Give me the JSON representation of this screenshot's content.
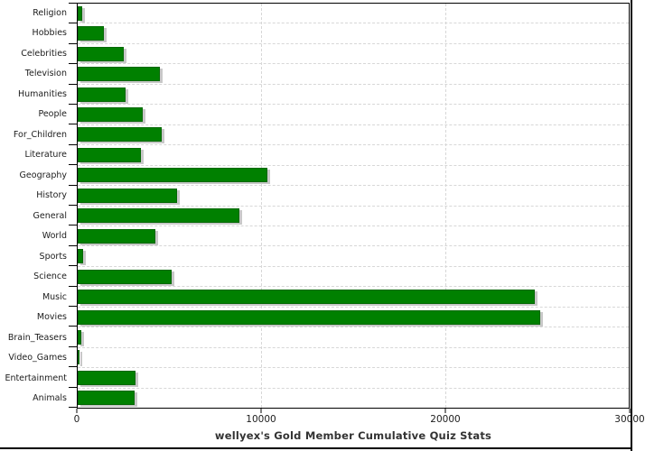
{
  "chart_data": {
    "type": "bar",
    "orientation": "horizontal",
    "title": "wellyex's Gold Member Cumulative Quiz Stats",
    "xlabel": "",
    "ylabel": "",
    "categories": [
      "Religion",
      "Hobbies",
      "Celebrities",
      "Television",
      "Humanities",
      "People",
      "For_Children",
      "Literature",
      "Geography",
      "History",
      "General",
      "World",
      "Sports",
      "Science",
      "Music",
      "Movies",
      "Brain_Teasers",
      "Video_Games",
      "Entertainment",
      "Animals"
    ],
    "values": [
      230,
      1430,
      2510,
      4490,
      2610,
      3560,
      4590,
      3460,
      10340,
      5420,
      8800,
      4220,
      300,
      5100,
      24870,
      25200,
      180,
      110,
      3150,
      3110
    ],
    "xlim": [
      0,
      30000
    ],
    "x_ticks": [
      0,
      10000,
      20000,
      30000
    ],
    "x_tick_labels": [
      "0",
      "10000",
      "20000",
      "30000"
    ],
    "grid": "dashed",
    "legend": "none",
    "colors": {
      "bar_fill": "#008000",
      "bar_border": "#036803",
      "bar_shadow": "#c8c8c8",
      "grid_line": "#d7d7d7",
      "axis_line": "#000000",
      "tick_label": "#1c1c1c",
      "title_text": "#333333",
      "background": "#ffffff"
    }
  }
}
